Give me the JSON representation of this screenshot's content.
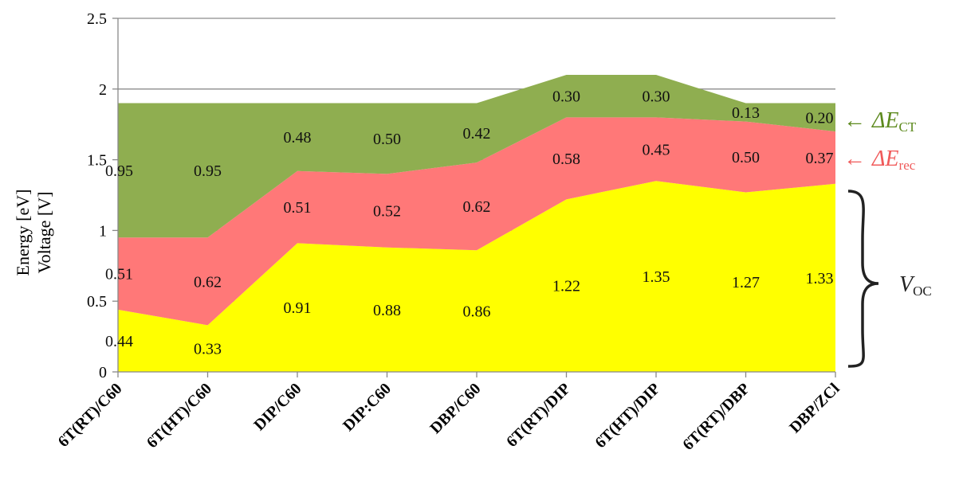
{
  "chart_data": {
    "type": "area",
    "stacked": true,
    "categories": [
      "6T(RT)/C60",
      "6T(HT)/C60",
      "DIP/C60",
      "DIP:C60",
      "DBP/C60",
      "6T(RT)/DIP",
      "6T(HT)/DIP",
      "6T(RT)/DBP",
      "DBP/ZCl"
    ],
    "series": [
      {
        "key": "voc",
        "color": "#ffff00",
        "values": [
          0.44,
          0.33,
          0.91,
          0.88,
          0.86,
          1.22,
          1.35,
          1.27,
          1.33
        ]
      },
      {
        "key": "erec",
        "color": "#ff7878",
        "values": [
          0.51,
          0.62,
          0.51,
          0.52,
          0.62,
          0.58,
          0.45,
          0.5,
          0.37
        ]
      },
      {
        "key": "ect",
        "color": "#8fae50",
        "values": [
          0.95,
          0.95,
          0.48,
          0.5,
          0.42,
          0.3,
          0.3,
          0.13,
          0.2
        ]
      }
    ],
    "ylabel_line1": "Energy [eV]",
    "ylabel_line2": "Voltage [V]",
    "ylim": [
      0,
      2.5
    ],
    "yticks": [
      "0",
      "0.5",
      "1",
      "1.5",
      "2",
      "2.5"
    ],
    "grid": true,
    "annotations": {
      "ect": {
        "arrow": "←",
        "symbol": "ΔE",
        "subscript": "CT",
        "color": "#5d8a1e"
      },
      "erec": {
        "arrow": "←",
        "symbol": "ΔE",
        "subscript": "rec",
        "color": "#f05a5a"
      },
      "voc": {
        "brace": "}",
        "symbol": "V",
        "subscript": "OC",
        "color": "#222222"
      }
    }
  }
}
